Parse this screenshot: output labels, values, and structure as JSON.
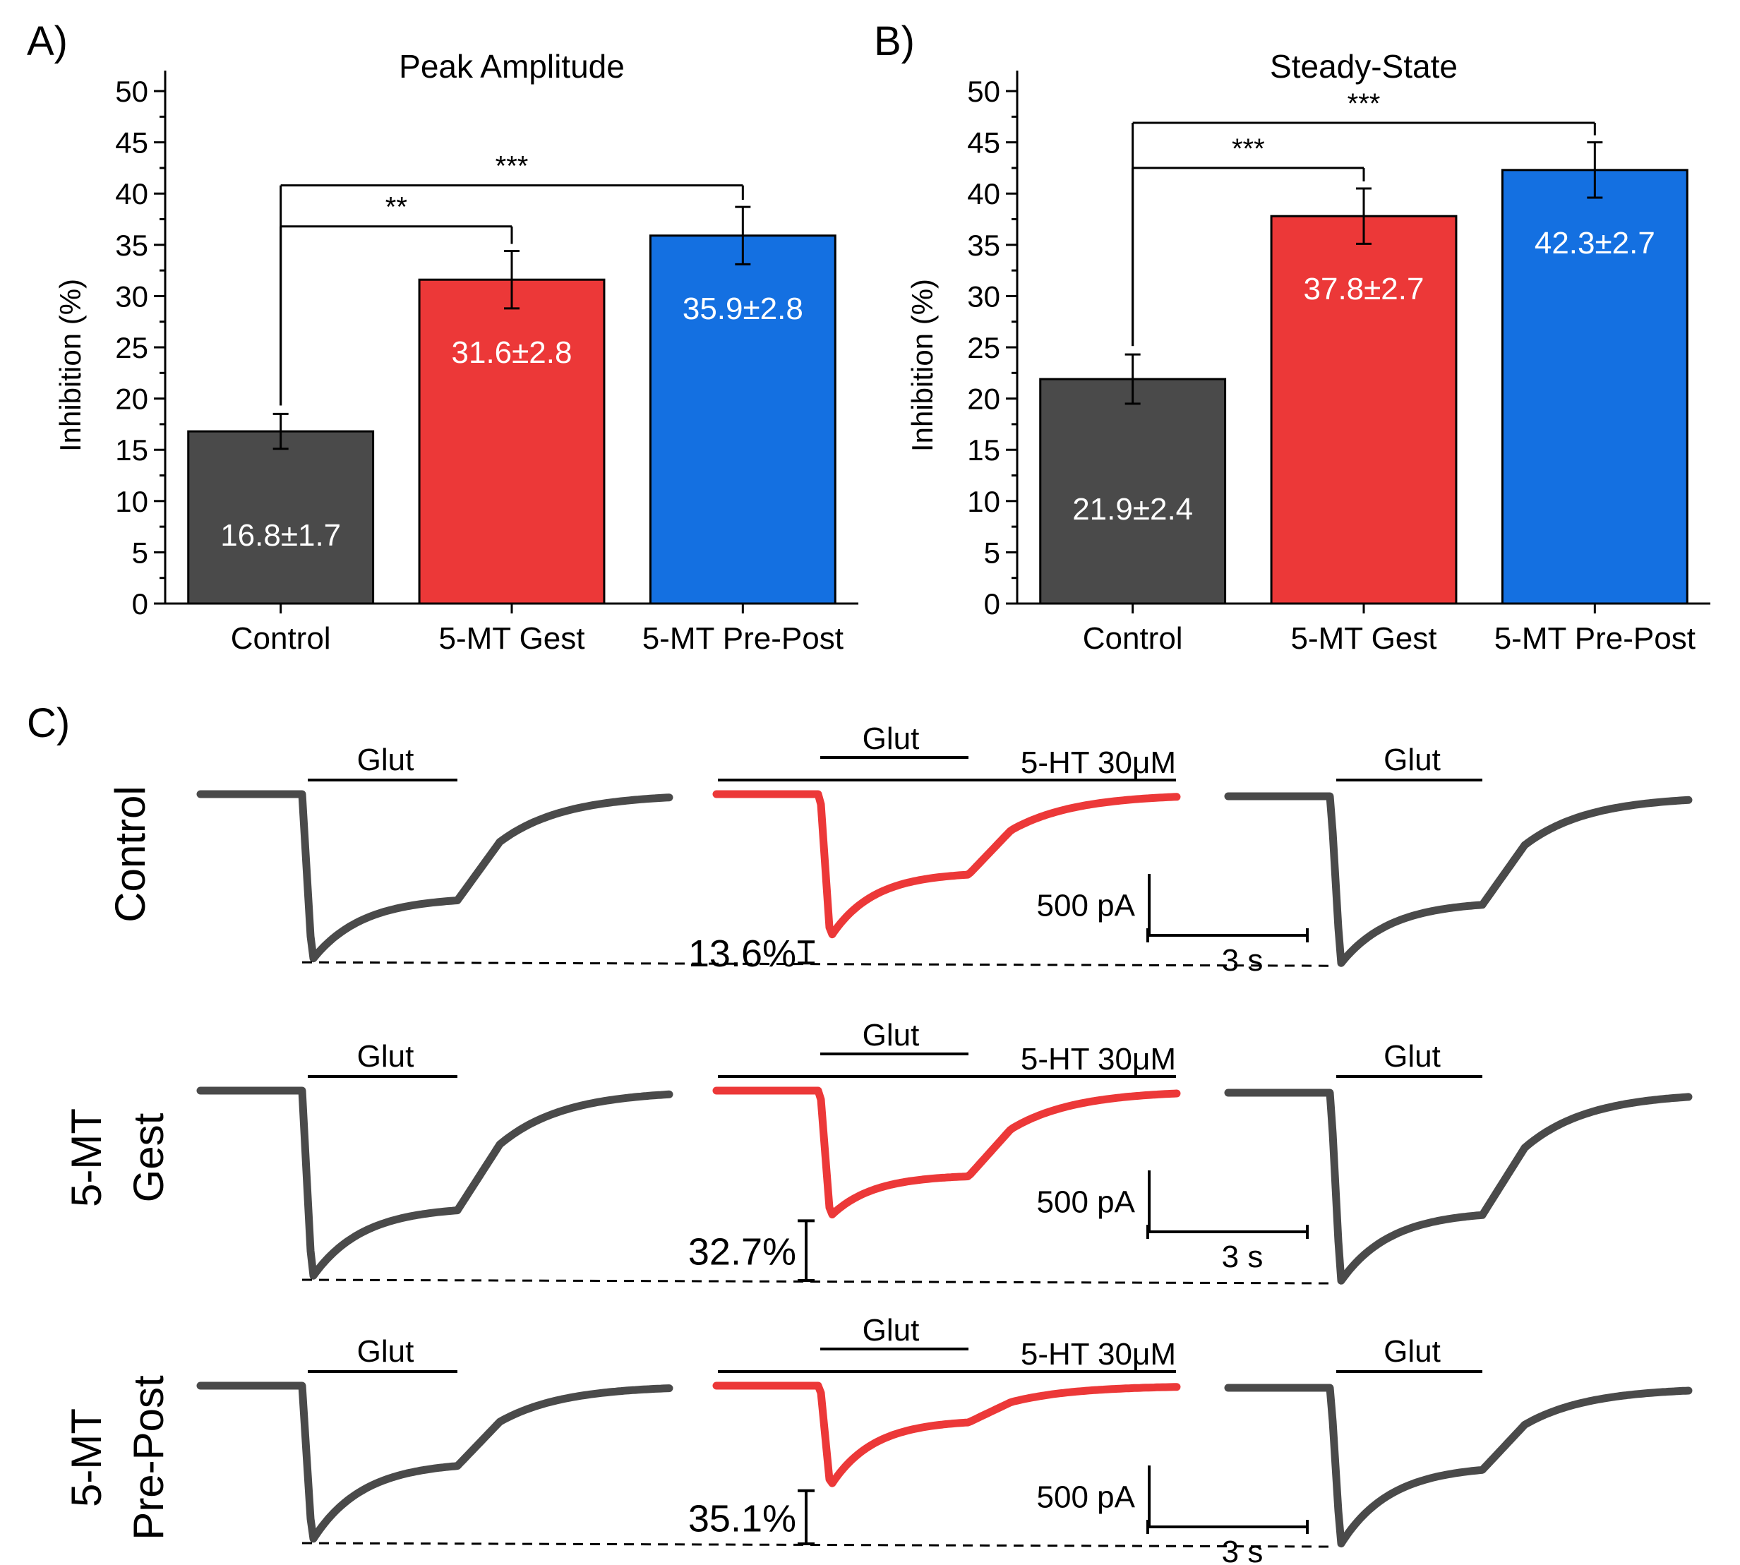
{
  "colors": {
    "control": "#4a4a4a",
    "gest": "#ec3838",
    "prepost": "#1470e1",
    "trace_control": "#4a4a4a",
    "trace_5ht": "#ec3838",
    "axis": "#000000",
    "bar_label": "#ffffff"
  },
  "panels": {
    "a_letter": "A)",
    "b_letter": "B)",
    "c_letter": "C)"
  },
  "chart_data": [
    {
      "type": "bar",
      "panel": "A",
      "title": "Peak Amplitude",
      "xlabel": "",
      "ylabel": "Inhibition (%)",
      "ylim": [
        0,
        52
      ],
      "yticks": [
        "0",
        "5",
        "10",
        "15",
        "20",
        "25",
        "30",
        "35",
        "40",
        "45",
        "50"
      ],
      "categories": [
        "Control",
        "5-MT Gest",
        "5-MT Pre-Post"
      ],
      "values": [
        16.8,
        31.6,
        35.9
      ],
      "errors": [
        1.7,
        2.8,
        2.8
      ],
      "bar_labels": [
        "16.8±1.7",
        "31.6±2.8",
        "35.9±2.8"
      ],
      "significance": [
        {
          "from": "Control",
          "to": "5-MT Gest",
          "level": 36.8,
          "label": "**"
        },
        {
          "from": "Control",
          "to": "5-MT Pre-Post",
          "level": 40.8,
          "label": "***"
        }
      ]
    },
    {
      "type": "bar",
      "panel": "B",
      "title": "Steady-State",
      "xlabel": "",
      "ylabel": "Inhibition (%)",
      "ylim": [
        0,
        52
      ],
      "yticks": [
        "0",
        "5",
        "10",
        "15",
        "20",
        "25",
        "30",
        "35",
        "40",
        "45",
        "50"
      ],
      "categories": [
        "Control",
        "5-MT Gest",
        "5-MT Pre-Post"
      ],
      "values": [
        21.9,
        37.8,
        42.3
      ],
      "errors": [
        2.4,
        2.7,
        2.7
      ],
      "bar_labels": [
        "21.9±2.4",
        "37.8±2.7",
        "42.3±2.7"
      ],
      "significance": [
        {
          "from": "Control",
          "to": "5-MT Gest",
          "level": 42.5,
          "label": "***"
        },
        {
          "from": "Control",
          "to": "5-MT Pre-Post",
          "level": 46.9,
          "label": "***"
        }
      ]
    }
  ],
  "traces": {
    "glut_label": "Glut",
    "ht_label": "5-HT 30μM",
    "scale_y_label": "500 pA",
    "scale_x_label": "3 s",
    "rows": [
      {
        "label_lines": [
          "Control"
        ],
        "percent": "13.6%",
        "peak": 0.96,
        "plateau": 0.62,
        "inhibited_plateau": 0.47,
        "inhibition_fraction": 0.136
      },
      {
        "label_lines": [
          "5-MT",
          "Gest"
        ],
        "percent": "32.7%",
        "peak": 1.0,
        "plateau": 0.62,
        "inhibited_plateau": 0.45,
        "inhibition_fraction": 0.327
      },
      {
        "label_lines": [
          "5-MT",
          "Pre-Post"
        ],
        "percent": "35.1%",
        "peak": 1.0,
        "plateau": 0.49,
        "inhibited_plateau": 0.22,
        "inhibition_fraction": 0.351
      }
    ]
  }
}
